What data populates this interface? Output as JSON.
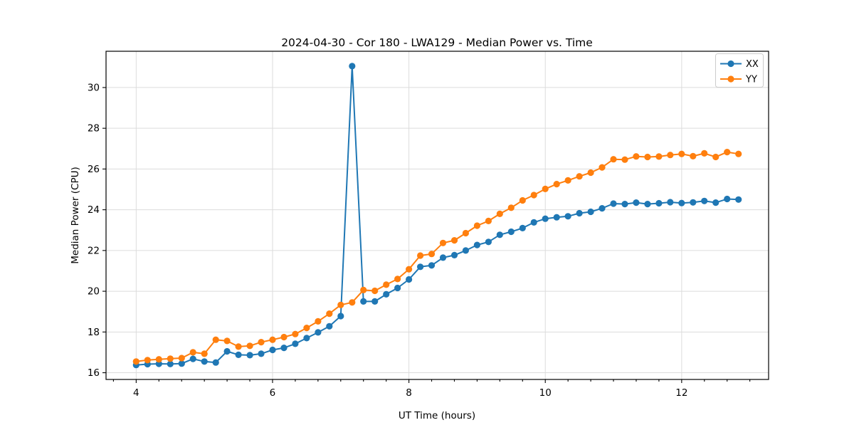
{
  "figure": {
    "background": "#ffffff"
  },
  "chart_data": {
    "type": "line",
    "title": "2024-04-30 - Cor 180 - LWA129 - Median Power vs. Time",
    "xlabel": "UT Time (hours)",
    "ylabel": "Median Power (CPU)",
    "xlim": [
      3.558,
      13.275
    ],
    "ylim": [
      15.67,
      31.78
    ],
    "x_ticks": [
      4,
      6,
      8,
      10,
      12
    ],
    "x_minor_tick_step": 0.33333,
    "y_ticks": [
      16,
      18,
      20,
      22,
      24,
      26,
      28,
      30
    ],
    "grid": true,
    "legend_position": "upper right",
    "marker": "o",
    "x": [
      4.0,
      4.167,
      4.333,
      4.5,
      4.667,
      4.833,
      5.0,
      5.167,
      5.333,
      5.5,
      5.667,
      5.833,
      6.0,
      6.167,
      6.333,
      6.5,
      6.667,
      6.833,
      7.0,
      7.167,
      7.333,
      7.5,
      7.667,
      7.833,
      8.0,
      8.167,
      8.333,
      8.5,
      8.667,
      8.833,
      9.0,
      9.167,
      9.333,
      9.5,
      9.667,
      9.833,
      10.0,
      10.167,
      10.333,
      10.5,
      10.667,
      10.833,
      11.0,
      11.167,
      11.333,
      11.5,
      11.667,
      11.833,
      12.0,
      12.167,
      12.333,
      12.5,
      12.667,
      12.833
    ],
    "series": [
      {
        "name": "XX",
        "color": "#1f77b4",
        "values": [
          16.38,
          16.42,
          16.44,
          16.43,
          16.45,
          16.68,
          16.55,
          16.5,
          17.05,
          16.88,
          16.86,
          16.93,
          17.12,
          17.22,
          17.42,
          17.7,
          17.98,
          18.28,
          18.78,
          31.05,
          19.5,
          19.5,
          19.85,
          20.16,
          20.58,
          21.2,
          21.27,
          21.65,
          21.77,
          22.0,
          22.27,
          22.42,
          22.77,
          22.92,
          23.1,
          23.38,
          23.56,
          23.63,
          23.68,
          23.83,
          23.9,
          24.07,
          24.3,
          24.28,
          24.35,
          24.28,
          24.32,
          24.37,
          24.33,
          24.36,
          24.43,
          24.35,
          24.53,
          24.5
        ]
      },
      {
        "name": "YY",
        "color": "#ff7f0e",
        "values": [
          16.55,
          16.62,
          16.66,
          16.69,
          16.72,
          17.0,
          16.93,
          17.62,
          17.56,
          17.28,
          17.32,
          17.5,
          17.62,
          17.75,
          17.9,
          18.2,
          18.52,
          18.9,
          19.33,
          19.45,
          20.06,
          20.02,
          20.32,
          20.6,
          21.08,
          21.75,
          21.83,
          22.37,
          22.5,
          22.85,
          23.22,
          23.45,
          23.8,
          24.1,
          24.46,
          24.72,
          25.02,
          25.26,
          25.44,
          25.64,
          25.82,
          26.08,
          26.48,
          26.46,
          26.62,
          26.59,
          26.61,
          26.69,
          26.74,
          26.63,
          26.77,
          26.59,
          26.83,
          26.74
        ]
      }
    ]
  },
  "colors": {
    "grid": "#dcdcdc",
    "spine": "#000000",
    "legend_border": "#cccccc",
    "background": "#ffffff"
  }
}
